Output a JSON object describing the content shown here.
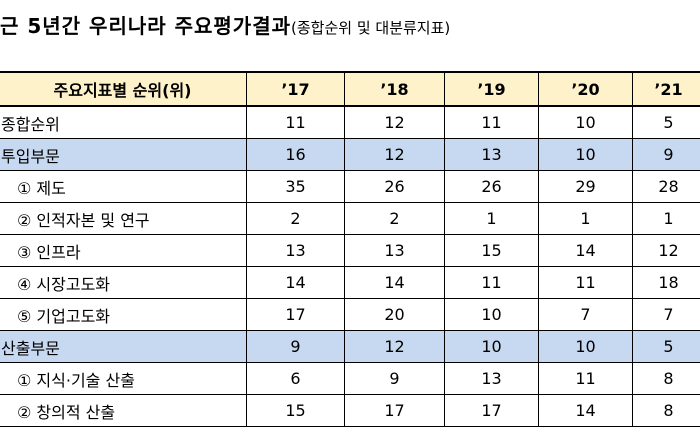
{
  "title": {
    "main": "근 5년간 우리나라 주요평가결과",
    "sub": "(종합순위 및 대분류지표)"
  },
  "table": {
    "header": [
      "주요지표별 순위(위)",
      "’17",
      "’18",
      "’19",
      "’20",
      "’21"
    ],
    "rows": [
      {
        "label": "종합순위",
        "values": [
          "11",
          "12",
          "11",
          "10",
          "5"
        ]
      },
      {
        "label": "투입부문",
        "values": [
          "16",
          "12",
          "13",
          "10",
          "9"
        ]
      },
      {
        "label": "① 제도",
        "values": [
          "35",
          "26",
          "26",
          "29",
          "28"
        ]
      },
      {
        "label": "② 인적자본 및 연구",
        "values": [
          "2",
          "2",
          "1",
          "1",
          "1"
        ]
      },
      {
        "label": "③ 인프라",
        "values": [
          "13",
          "13",
          "15",
          "14",
          "12"
        ]
      },
      {
        "label": "④ 시장고도화",
        "values": [
          "14",
          "14",
          "11",
          "11",
          "18"
        ]
      },
      {
        "label": "⑤ 기업고도화",
        "values": [
          "17",
          "20",
          "10",
          "7",
          "7"
        ]
      },
      {
        "label": "산출부문",
        "values": [
          "9",
          "12",
          "10",
          "10",
          "5"
        ]
      },
      {
        "label": "① 지식·기술 산출",
        "values": [
          "6",
          "9",
          "13",
          "11",
          "8"
        ]
      },
      {
        "label": "② 창의적 산출",
        "values": [
          "15",
          "17",
          "17",
          "14",
          "8"
        ]
      }
    ]
  }
}
